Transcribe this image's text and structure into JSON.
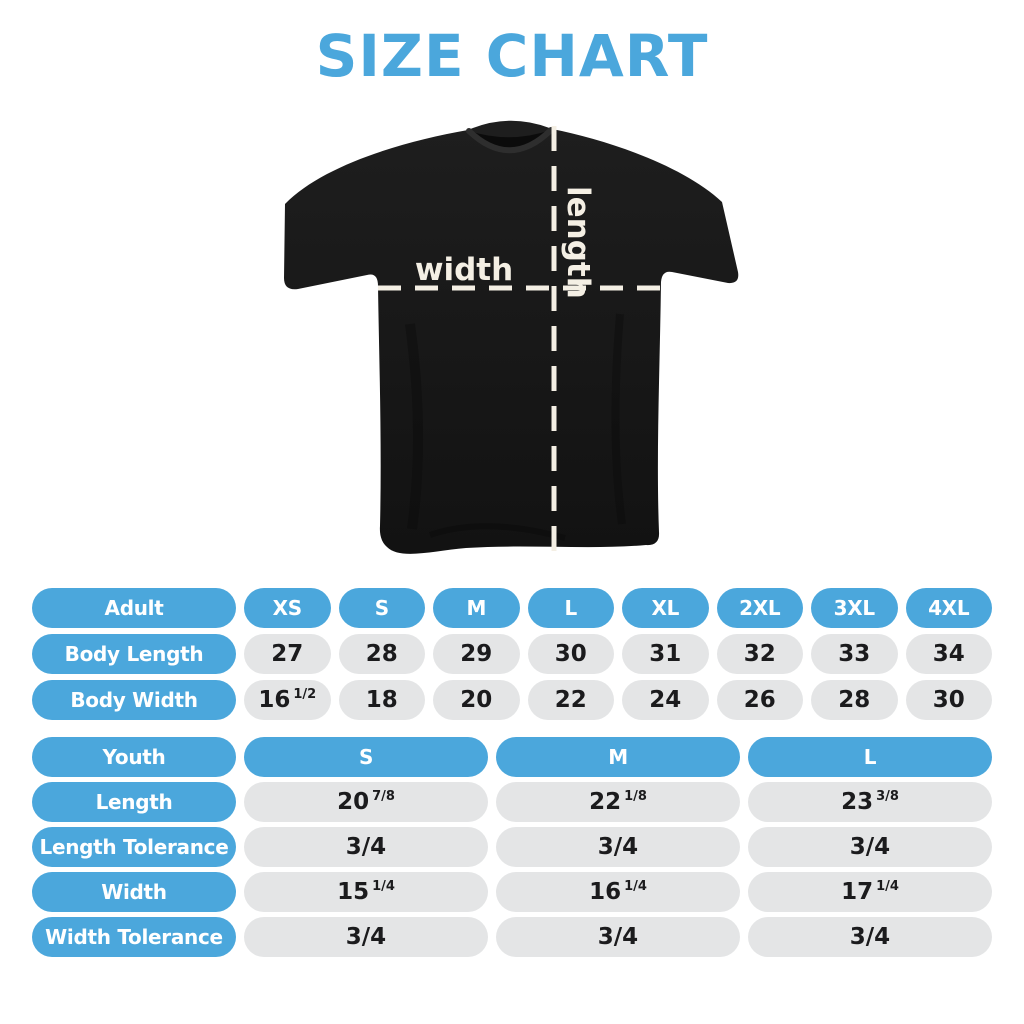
{
  "title": "SIZE CHART",
  "colors": {
    "accent_blue": "#4BA7DC",
    "pill_gray": "#E4E5E6",
    "value_text": "#1B1B1D",
    "shirt_black": "#161616",
    "dash_cream": "#F4EFE4",
    "background": "#FFFFFF"
  },
  "shirt_diagram": {
    "width_label": "width",
    "length_label": "length"
  },
  "adult_table": {
    "header": {
      "label": "Adult",
      "columns": [
        "XS",
        "S",
        "M",
        "L",
        "XL",
        "2XL",
        "3XL",
        "4XL"
      ]
    },
    "rows": [
      {
        "label": "Body Length",
        "values": [
          "27",
          "28",
          "29",
          "30",
          "31",
          "32",
          "33",
          "34"
        ]
      },
      {
        "label": "Body Width",
        "values": [
          "16 1/2",
          "18",
          "20",
          "22",
          "24",
          "26",
          "28",
          "30"
        ]
      }
    ]
  },
  "youth_table": {
    "header": {
      "label": "Youth",
      "columns": [
        "S",
        "M",
        "L"
      ]
    },
    "rows": [
      {
        "label": "Length",
        "values": [
          "20 7/8",
          "22 1/8",
          "23 3/8"
        ]
      },
      {
        "label": "Length Tolerance",
        "values": [
          "3/4",
          "3/4",
          "3/4"
        ]
      },
      {
        "label": "Width",
        "values": [
          "15 1/4",
          "16 1/4",
          "17 1/4"
        ]
      },
      {
        "label": "Width Tolerance",
        "values": [
          "3/4",
          "3/4",
          "3/4"
        ]
      }
    ]
  }
}
